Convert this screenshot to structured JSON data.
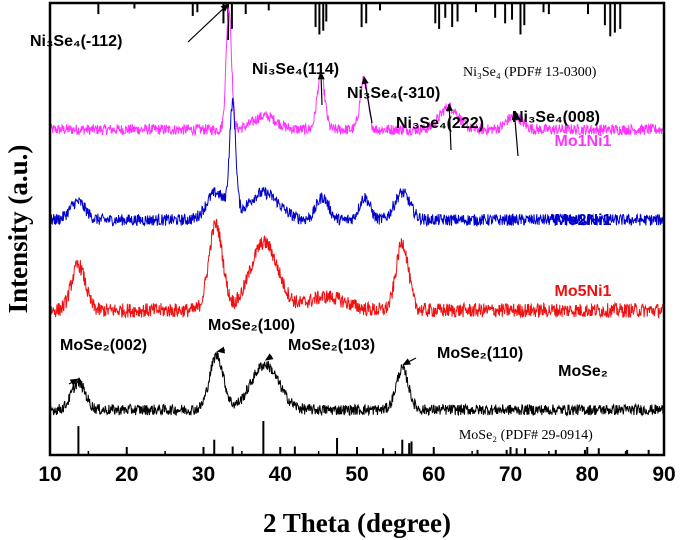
{
  "chart_data": {
    "type": "line",
    "xlabel": "2 Theta (degree)",
    "ylabel": "Intensity (a.u.)",
    "xlim": [
      10,
      90
    ],
    "xticks": [
      10,
      20,
      30,
      40,
      50,
      60,
      70,
      80,
      90
    ],
    "y_ticks_shown": false,
    "series": [
      {
        "name": "Mo1Ni1",
        "color": "#ff33ff",
        "baseline": 0.72,
        "noise": 0.012,
        "peaks": [
          [
            33.3,
            0.27,
            0.35
          ],
          [
            45.3,
            0.12,
            0.5
          ],
          [
            50.9,
            0.11,
            0.5
          ],
          [
            62.0,
            0.05,
            1.2
          ],
          [
            70.5,
            0.03,
            1.0
          ],
          [
            38.0,
            0.03,
            1.5
          ]
        ]
      },
      {
        "name": "Mo2Ni1",
        "color": "#0000cc",
        "baseline": 0.52,
        "noise": 0.013,
        "peaks": [
          [
            13.6,
            0.04,
            1.0
          ],
          [
            31.6,
            0.06,
            1.2
          ],
          [
            33.8,
            0.24,
            0.4
          ],
          [
            37.8,
            0.06,
            2.0
          ],
          [
            45.5,
            0.05,
            0.8
          ],
          [
            51.0,
            0.05,
            0.7
          ],
          [
            55.9,
            0.06,
            1.0
          ]
        ]
      },
      {
        "name": "Mo5Ni1",
        "color": "#ee1111",
        "baseline": 0.32,
        "noise": 0.016,
        "peaks": [
          [
            13.7,
            0.1,
            0.9
          ],
          [
            31.6,
            0.19,
            0.9
          ],
          [
            37.9,
            0.15,
            1.8
          ],
          [
            46.0,
            0.03,
            2.5
          ],
          [
            55.9,
            0.15,
            0.8
          ]
        ]
      },
      {
        "name": "MoSe2",
        "color": "#000000",
        "baseline": 0.1,
        "noise": 0.012,
        "peaks": [
          [
            13.7,
            0.06,
            0.9
          ],
          [
            31.7,
            0.12,
            0.9
          ],
          [
            38.0,
            0.1,
            1.8
          ],
          [
            55.9,
            0.09,
            0.8
          ]
        ]
      }
    ],
    "series_labels": [
      {
        "text": "Mo1Ni1",
        "series": 0
      },
      {
        "text": "Mo2Ni1",
        "series": 1
      },
      {
        "text": "Mo5Ni1",
        "series": 2
      },
      {
        "text": "MoSe₂",
        "series": 3
      }
    ],
    "reference_patterns": [
      {
        "text": "Ni₃Se₄ (PDF# 13-0300)",
        "lines": [
          [
            16.3,
            0.3
          ],
          [
            21.0,
            0.15
          ],
          [
            28.6,
            0.35
          ],
          [
            29.2,
            0.25
          ],
          [
            32.6,
            0.55
          ],
          [
            33.2,
            1.0
          ],
          [
            33.7,
            0.7
          ],
          [
            35.5,
            0.3
          ],
          [
            38.5,
            0.2
          ],
          [
            44.6,
            0.65
          ],
          [
            45.1,
            0.85
          ],
          [
            45.6,
            0.75
          ],
          [
            46.0,
            0.5
          ],
          [
            50.6,
            0.65
          ],
          [
            51.2,
            0.55
          ],
          [
            53.0,
            0.2
          ],
          [
            60.2,
            0.55
          ],
          [
            60.7,
            0.7
          ],
          [
            61.5,
            0.4
          ],
          [
            62.4,
            0.65
          ],
          [
            63.1,
            0.5
          ],
          [
            65.5,
            0.25
          ],
          [
            68.0,
            0.4
          ],
          [
            69.3,
            0.55
          ],
          [
            70.2,
            0.45
          ],
          [
            71.3,
            0.85
          ],
          [
            71.8,
            0.6
          ],
          [
            74.3,
            0.25
          ],
          [
            75.0,
            0.3
          ],
          [
            80.1,
            0.3
          ],
          [
            82.3,
            0.6
          ],
          [
            83.0,
            0.9
          ],
          [
            83.6,
            0.8
          ],
          [
            84.3,
            0.7
          ]
        ]
      },
      {
        "text": "MoSe₂ (PDF# 29-0914)",
        "lines": [
          [
            13.7,
            0.85
          ],
          [
            31.4,
            0.45
          ],
          [
            33.8,
            0.25
          ],
          [
            37.8,
            1.0
          ],
          [
            41.9,
            0.25
          ],
          [
            47.4,
            0.5
          ],
          [
            53.4,
            0.2
          ],
          [
            55.9,
            0.45
          ],
          [
            56.8,
            0.35
          ],
          [
            57.1,
            0.4
          ],
          [
            65.7,
            0.15
          ],
          [
            69.5,
            0.15
          ],
          [
            70.8,
            0.2
          ],
          [
            71.9,
            0.2
          ],
          [
            75.9,
            0.15
          ],
          [
            79.7,
            0.15
          ],
          [
            81.5,
            0.2
          ],
          [
            85.2,
            0.15
          ],
          [
            88.0,
            0.15
          ]
        ]
      }
    ],
    "annotations": [
      {
        "text": "Ni₃Se₄(-112)",
        "x": 33.3,
        "series": 0
      },
      {
        "text": "Ni₃Se₄(114)",
        "x": 45.3,
        "series": 0
      },
      {
        "text": "Ni₃Se₄(-310)",
        "x": 50.9,
        "series": 0
      },
      {
        "text": "Ni₃Se₄(222)",
        "x": 62.0,
        "series": 0
      },
      {
        "text": "Ni₃Se₄(008)",
        "x": 70.5,
        "series": 0
      },
      {
        "text": "MoSe₂(002)",
        "x": 13.7,
        "series": 3
      },
      {
        "text": "MoSe₂(100)",
        "x": 31.7,
        "series": 3
      },
      {
        "text": "MoSe₂(103)",
        "x": 38.0,
        "series": 3
      },
      {
        "text": "MoSe₂(110)",
        "x": 55.9,
        "series": 3
      }
    ]
  }
}
